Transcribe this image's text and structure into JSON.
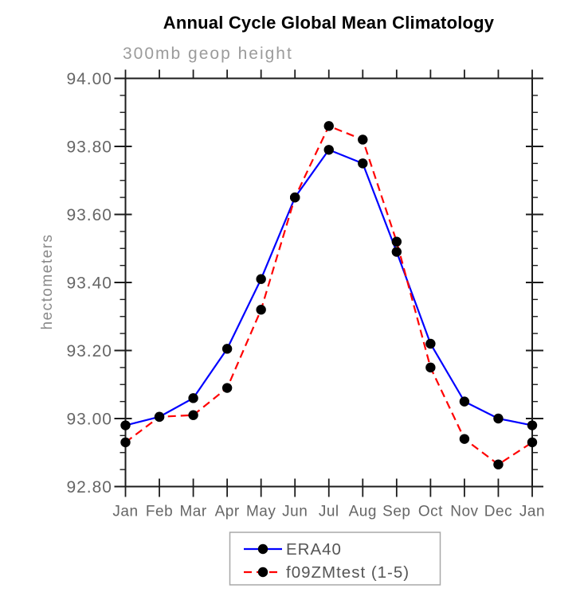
{
  "chart_data": {
    "type": "line",
    "title": "Annual Cycle Global Mean Climatology",
    "subtitle": "300mb geop height",
    "ylabel": "hectometers",
    "xlabel": "",
    "categories": [
      "Jan",
      "Feb",
      "Mar",
      "Apr",
      "May",
      "Jun",
      "Jul",
      "Aug",
      "Sep",
      "Oct",
      "Nov",
      "Dec",
      "Jan"
    ],
    "ylim": [
      92.8,
      94.0
    ],
    "ytick_interval": 0.2,
    "yminor_interval": 0.05,
    "ytick_labels": [
      "92.80",
      "93.00",
      "93.20",
      "93.40",
      "93.60",
      "93.80",
      "94.00"
    ],
    "grid": false,
    "legend_position": "bottom-center",
    "marker_color": "#000000",
    "series": [
      {
        "name": "ERA40",
        "color": "#0000ff",
        "style": "solid",
        "marker": "filled-circle",
        "values": [
          92.98,
          93.005,
          93.06,
          93.205,
          93.41,
          93.65,
          93.79,
          93.75,
          93.49,
          93.22,
          93.05,
          93.0,
          92.98
        ]
      },
      {
        "name": "f09ZMtest (1-5)",
        "color": "#ff0000",
        "style": "dashed",
        "marker": "filled-circle",
        "values": [
          92.93,
          93.005,
          93.01,
          93.09,
          93.32,
          93.65,
          93.86,
          93.82,
          93.52,
          93.15,
          92.94,
          92.865,
          92.93
        ]
      }
    ]
  }
}
